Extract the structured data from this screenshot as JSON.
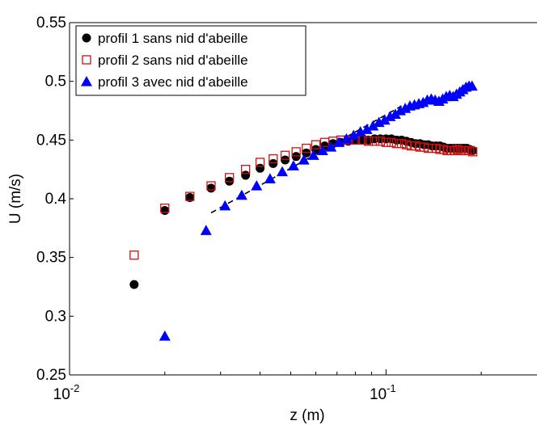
{
  "chart_data": {
    "type": "scatter",
    "xlabel": "z (m)",
    "ylabel": "U (m/s)",
    "xscale": "log",
    "xlim": [
      0.01,
      0.3
    ],
    "ylim": [
      0.25,
      0.55
    ],
    "x_ticks": [
      {
        "value": 0.01,
        "base": "10",
        "exp": "-2"
      },
      {
        "value": 0.1,
        "base": "10",
        "exp": "-1"
      }
    ],
    "y_ticks": [
      {
        "value": 0.25,
        "label": "0.25"
      },
      {
        "value": 0.3,
        "label": "0.3"
      },
      {
        "value": 0.35,
        "label": "0.35"
      },
      {
        "value": 0.4,
        "label": "0.4"
      },
      {
        "value": 0.45,
        "label": "0.45"
      },
      {
        "value": 0.5,
        "label": "0.5"
      },
      {
        "value": 0.55,
        "label": "0.55"
      }
    ],
    "grid": false,
    "legend_position": "top-left",
    "series": [
      {
        "name": "profil 1 sans nid d'abeille",
        "marker": "filled-circle",
        "color": "#000000",
        "x": [
          0.016,
          0.02,
          0.024,
          0.028,
          0.032,
          0.036,
          0.04,
          0.044,
          0.048,
          0.052,
          0.056,
          0.06,
          0.064,
          0.068,
          0.072,
          0.076,
          0.08,
          0.084,
          0.088,
          0.092,
          0.096,
          0.1,
          0.104,
          0.108,
          0.112,
          0.116,
          0.12,
          0.124,
          0.128,
          0.132,
          0.136,
          0.14,
          0.144,
          0.148,
          0.152,
          0.156,
          0.16,
          0.164,
          0.168,
          0.172,
          0.176,
          0.18,
          0.184,
          0.188
        ],
        "y": [
          0.327,
          0.39,
          0.401,
          0.409,
          0.415,
          0.42,
          0.426,
          0.43,
          0.433,
          0.436,
          0.439,
          0.442,
          0.445,
          0.447,
          0.448,
          0.449,
          0.45,
          0.45,
          0.45,
          0.451,
          0.451,
          0.451,
          0.451,
          0.45,
          0.45,
          0.449,
          0.448,
          0.447,
          0.447,
          0.446,
          0.446,
          0.445,
          0.445,
          0.445,
          0.444,
          0.443,
          0.443,
          0.443,
          0.443,
          0.443,
          0.443,
          0.443,
          0.442,
          0.441
        ]
      },
      {
        "name": "profil 2 sans nid d'abeille",
        "marker": "open-square",
        "color": "#cc1111",
        "x": [
          0.016,
          0.02,
          0.024,
          0.028,
          0.032,
          0.036,
          0.04,
          0.044,
          0.048,
          0.052,
          0.056,
          0.06,
          0.064,
          0.068,
          0.072,
          0.076,
          0.08,
          0.084,
          0.088,
          0.092,
          0.096,
          0.1,
          0.104,
          0.108,
          0.112,
          0.116,
          0.12,
          0.124,
          0.128,
          0.132,
          0.136,
          0.14,
          0.144,
          0.148,
          0.152,
          0.156,
          0.16,
          0.164,
          0.168,
          0.172,
          0.176,
          0.18,
          0.184,
          0.188
        ],
        "y": [
          0.352,
          0.392,
          0.402,
          0.411,
          0.418,
          0.425,
          0.431,
          0.434,
          0.437,
          0.44,
          0.443,
          0.446,
          0.448,
          0.449,
          0.45,
          0.45,
          0.45,
          0.45,
          0.449,
          0.449,
          0.449,
          0.448,
          0.448,
          0.447,
          0.447,
          0.446,
          0.445,
          0.445,
          0.444,
          0.444,
          0.443,
          0.443,
          0.443,
          0.442,
          0.442,
          0.441,
          0.441,
          0.441,
          0.442,
          0.441,
          0.441,
          0.441,
          0.441,
          0.44
        ]
      },
      {
        "name": "profil 3 avec nid d'abeille",
        "marker": "filled-triangle",
        "color": "#0000ff",
        "x": [
          0.02,
          0.027,
          0.031,
          0.035,
          0.039,
          0.043,
          0.047,
          0.051,
          0.055,
          0.059,
          0.063,
          0.067,
          0.071,
          0.075,
          0.079,
          0.083,
          0.087,
          0.091,
          0.095,
          0.099,
          0.103,
          0.107,
          0.111,
          0.115,
          0.119,
          0.123,
          0.127,
          0.131,
          0.135,
          0.139,
          0.143,
          0.147,
          0.151,
          0.155,
          0.159,
          0.163,
          0.167,
          0.171,
          0.175,
          0.179,
          0.183,
          0.187
        ],
        "y": [
          0.283,
          0.373,
          0.394,
          0.403,
          0.411,
          0.417,
          0.423,
          0.428,
          0.433,
          0.437,
          0.441,
          0.444,
          0.448,
          0.451,
          0.454,
          0.457,
          0.459,
          0.462,
          0.465,
          0.467,
          0.47,
          0.472,
          0.475,
          0.477,
          0.479,
          0.48,
          0.481,
          0.482,
          0.484,
          0.485,
          0.484,
          0.483,
          0.485,
          0.487,
          0.488,
          0.487,
          0.489,
          0.491,
          0.493,
          0.495,
          0.496,
          0.496
        ]
      }
    ],
    "fit_line": {
      "style": "dashed",
      "color": "#000000",
      "x": [
        0.028,
        0.112
      ],
      "y": [
        0.388,
        0.479
      ]
    }
  }
}
